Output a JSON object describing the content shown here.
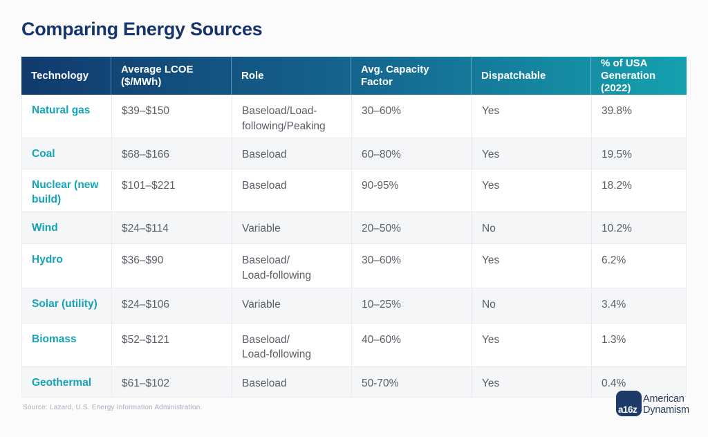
{
  "page": {
    "title": "Comparing Energy Sources",
    "source": "Source: Lazard, U.S. Energy Information Administration."
  },
  "table": {
    "header": {
      "c1": "Technology",
      "c2": "Average LCOE\n($/MWh)",
      "c3": "Role",
      "c4": "Avg. Capacity\nFactor",
      "c5": "Dispatchable",
      "c6": "% of USA\nGeneration\n(2022)"
    },
    "rows": [
      {
        "tech": "Natural gas",
        "lcoe": "$39–$150",
        "role": "Baseload/Load-\nfollowing/Peaking",
        "capacity": "30–60%",
        "dispatchable": "Yes",
        "share": "39.8%"
      },
      {
        "tech": "Coal",
        "lcoe": "$68–$166",
        "role": "Baseload",
        "capacity": "60–80%",
        "dispatchable": "Yes",
        "share": "19.5%"
      },
      {
        "tech": "Nuclear (new\nbuild)",
        "lcoe": "$101–$221",
        "role": "Baseload",
        "capacity": "90-95%",
        "dispatchable": "Yes",
        "share": "18.2%"
      },
      {
        "tech": "Wind",
        "lcoe": "$24–$114",
        "role": "Variable",
        "capacity": "20–50%",
        "dispatchable": "No",
        "share": "10.2%"
      },
      {
        "tech": "Hydro",
        "lcoe": "$36–$90",
        "role": "Baseload/\nLoad-following",
        "capacity": "30–60%",
        "dispatchable": "Yes",
        "share": "6.2%"
      },
      {
        "tech": "Solar (utility)",
        "lcoe": "$24–$106",
        "role": "Variable",
        "capacity": "10–25%",
        "dispatchable": "No",
        "share": "3.4%"
      },
      {
        "tech": "Biomass",
        "lcoe": "$52–$121",
        "role": "Baseload/\nLoad-following",
        "capacity": "40–60%",
        "dispatchable": "Yes",
        "share": "1.3%"
      },
      {
        "tech": "Geothermal",
        "lcoe": "$61–$102",
        "role": "Baseload",
        "capacity": "50-70%",
        "dispatchable": "Yes",
        "share": "0.4%"
      }
    ]
  },
  "logo": {
    "badge": "a16z",
    "line1": "American",
    "line2": "Dynamism"
  },
  "colors": {
    "title_navy": "#17356d",
    "header_gradient_start": "#113a6d",
    "header_gradient_end": "#15a1af",
    "technology_teal": "#14a3b8",
    "body_text": "#5a5e66",
    "row_alt_background": "#f5f6f8",
    "grid_line": "#e8eaed",
    "source_text": "#a7acb9",
    "logo_navy": "#1d3a69"
  },
  "chart_data": {
    "type": "table",
    "title": "Comparing Energy Sources",
    "columns": [
      "Technology",
      "Average LCOE ($/MWh)",
      "Role",
      "Avg. Capacity Factor",
      "Dispatchable",
      "% of USA Generation (2022)"
    ],
    "rows": [
      [
        "Natural gas",
        "$39–$150",
        "Baseload/Load-following/Peaking",
        "30–60%",
        "Yes",
        "39.8%"
      ],
      [
        "Coal",
        "$68–$166",
        "Baseload",
        "60–80%",
        "Yes",
        "19.5%"
      ],
      [
        "Nuclear (new build)",
        "$101–$221",
        "Baseload",
        "90-95%",
        "Yes",
        "18.2%"
      ],
      [
        "Wind",
        "$24–$114",
        "Variable",
        "20–50%",
        "No",
        "10.2%"
      ],
      [
        "Hydro",
        "$36–$90",
        "Baseload/Load-following",
        "30–60%",
        "Yes",
        "6.2%"
      ],
      [
        "Solar (utility)",
        "$24–$106",
        "Variable",
        "10–25%",
        "No",
        "3.4%"
      ],
      [
        "Biomass",
        "$52–$121",
        "Baseload/Load-following",
        "40–60%",
        "Yes",
        "1.3%"
      ],
      [
        "Geothermal",
        "$61–$102",
        "Baseload",
        "50-70%",
        "Yes",
        "0.4%"
      ]
    ],
    "source": "Source: Lazard, U.S. Energy Information Administration."
  }
}
